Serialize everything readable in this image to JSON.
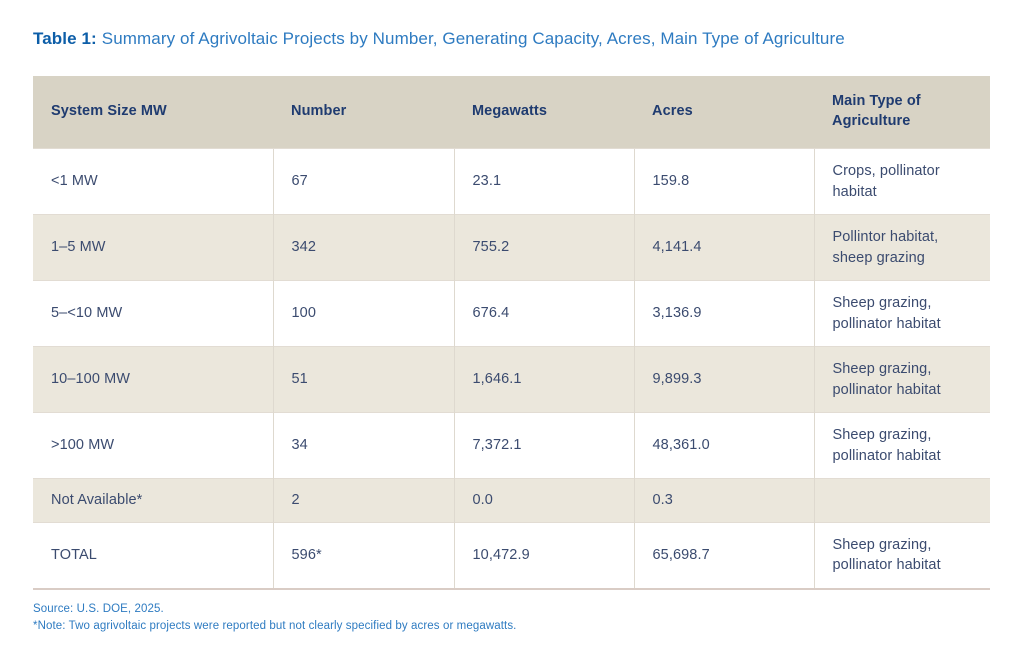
{
  "title": {
    "prefix": "Table 1:",
    "text": "Summary of Agrivoltaic Projects by Number, Generating Capacity, Acres, Main Type of Agriculture"
  },
  "table": {
    "columns": [
      "System Size MW",
      "Number",
      "Megawatts",
      "Acres",
      "Main Type of Agriculture"
    ],
    "rows": [
      {
        "cells": [
          "<1 MW",
          "67",
          "23.1",
          "159.8",
          "Crops, pollinator habitat"
        ]
      },
      {
        "cells": [
          "1–5 MW",
          "342",
          "755.2",
          "4,141.4",
          "Pollintor habitat, sheep grazing"
        ]
      },
      {
        "cells": [
          "5–<10 MW",
          "100",
          "676.4",
          "3,136.9",
          "Sheep grazing, pollinator habitat"
        ]
      },
      {
        "cells": [
          "10–100 MW",
          "51",
          "1,646.1",
          "9,899.3",
          "Sheep grazing, pollinator habitat"
        ]
      },
      {
        "cells": [
          "Not Available*",
          "2",
          "0.0",
          "0.3",
          ""
        ]
      },
      {
        "cells": [
          "TOTAL",
          "596*",
          "10,472.9",
          "65,698.7",
          "Sheep grazing, pollinator habitat"
        ]
      },
      {
        "cells": [
          ">100 MW",
          "34",
          "7,372.1",
          "48,361.0",
          "Sheep grazing, pollinator habitat"
        ]
      }
    ]
  },
  "notes": {
    "source": "Source: U.S. DOE, 2025.",
    "footnote": "*Note: Two agrivoltaic projects were reported but not clearly specified by acres or megawatts."
  },
  "colors": {
    "title_bold_blue": "#0d5ea8",
    "title_blue": "#2e7bc1",
    "header_background": "#d8d3c5",
    "header_text_navy": "#1f3b70",
    "row_stripe_beige": "#ebe7dc",
    "cell_text": "#3b4b6f",
    "note_blue": "#2e7bc1"
  }
}
